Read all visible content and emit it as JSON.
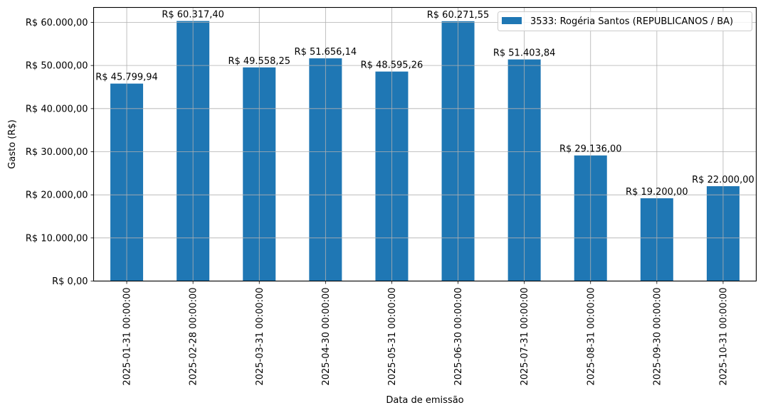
{
  "chart_data": {
    "type": "bar",
    "title": "",
    "xlabel": "Data de emissão",
    "ylabel": "Gasto (R$)",
    "categories": [
      "2025-01-31 00:00:00",
      "2025-02-28 00:00:00",
      "2025-03-31 00:00:00",
      "2025-04-30 00:00:00",
      "2025-05-31 00:00:00",
      "2025-06-30 00:00:00",
      "2025-07-31 00:00:00",
      "2025-08-31 00:00:00",
      "2025-09-30 00:00:00",
      "2025-10-31 00:00:00"
    ],
    "series": [
      {
        "name": "3533: Rogéria Santos (REPUBLICANOS / BA)",
        "color": "#1f77b4",
        "values": [
          45799.94,
          60317.4,
          49558.25,
          51656.14,
          48595.26,
          60271.55,
          51403.84,
          29136.0,
          19200.0,
          22000.0
        ],
        "data_labels": [
          "R$ 45.799,94",
          "R$ 60.317,40",
          "R$ 49.558,25",
          "R$ 51.656,14",
          "R$ 48.595,26",
          "R$ 60.271,55",
          "R$ 51.403,84",
          "R$ 29.136,00",
          "R$ 19.200,00",
          "R$ 22.000,00"
        ]
      }
    ],
    "yticks": [
      0,
      10000,
      20000,
      30000,
      40000,
      50000,
      60000
    ],
    "ytick_labels": [
      "R$ 0,00",
      "R$ 10.000,00",
      "R$ 20.000,00",
      "R$ 30.000,00",
      "R$ 40.000,00",
      "R$ 50.000,00",
      "R$ 60.000,00"
    ],
    "ylim": [
      0,
      63460
    ],
    "grid": true,
    "legend_position": "upper right"
  }
}
